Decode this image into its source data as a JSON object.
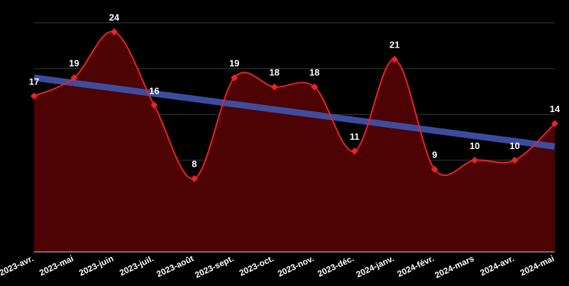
{
  "chart_data": {
    "type": "area",
    "categories": [
      "2023-avr.",
      "2023-mai",
      "2023-juin",
      "2023-juil.",
      "2023-août",
      "2023-sept.",
      "2023-oct.",
      "2023-nov.",
      "2023-déc.",
      "2024-janv.",
      "2024-févr.",
      "2024-mars",
      "2024-avr.",
      "2024-mai"
    ],
    "series": [
      {
        "values": [
          17,
          19,
          24,
          16,
          8,
          19,
          18,
          18,
          11,
          21,
          9,
          10,
          10,
          14
        ]
      }
    ],
    "trendline": {
      "start": 19.0,
      "end": 11.5
    },
    "ylim": [
      0,
      25
    ],
    "grid": true,
    "data_labels": true,
    "legend": "none",
    "colors": {
      "background": "#000000",
      "line": "#e8232a",
      "area": "#4d0303",
      "trend": "#3f51a8",
      "grid": "#3a3a3a",
      "text": "#ffffff"
    }
  }
}
